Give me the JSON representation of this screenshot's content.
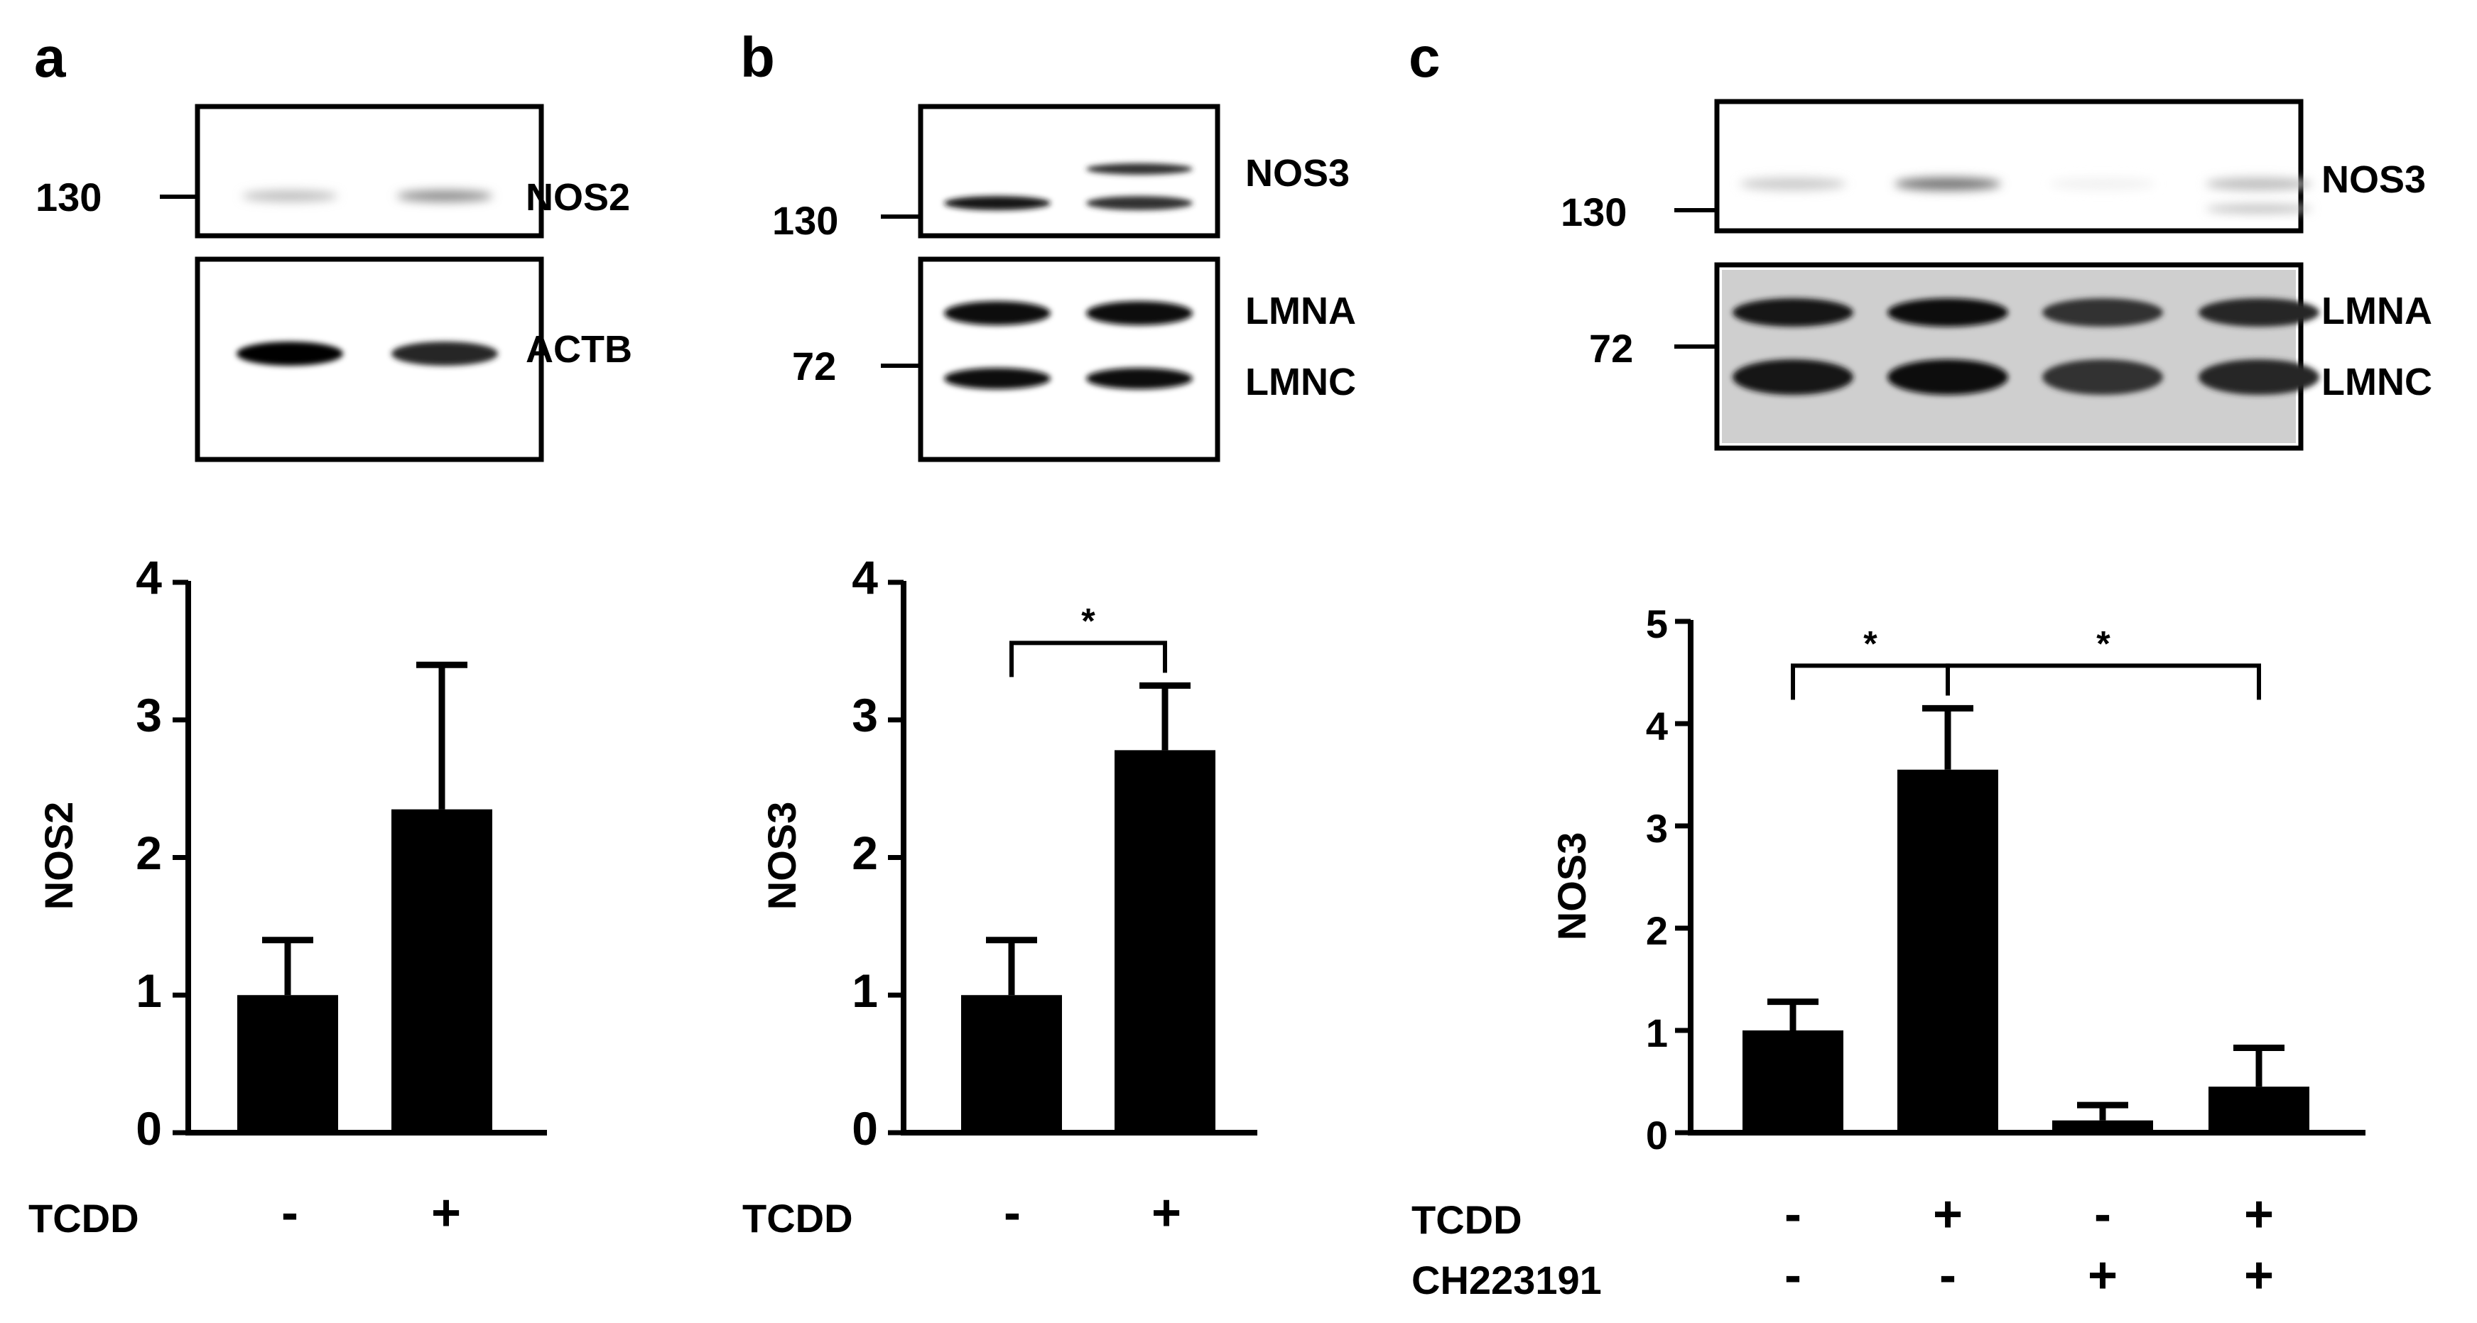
{
  "panels": [
    {
      "letter": "a",
      "blots": [
        {
          "bands": [
            "NOS2"
          ],
          "markers": [
            "130"
          ],
          "intensities": [
            0.25,
            0.45
          ]
        },
        {
          "bands": [
            "ACTB"
          ],
          "markers": [],
          "intensities": [
            1.0,
            0.85
          ]
        }
      ],
      "chart_data": {
        "type": "bar",
        "ylabel": "NOS2",
        "ylim": [
          0,
          4
        ],
        "yticks": [
          "0",
          "1",
          "2",
          "3",
          "4"
        ],
        "values": [
          1.0,
          2.35
        ],
        "errors": [
          0.4,
          1.05
        ],
        "conditions": [
          {
            "name": "TCDD",
            "signs": [
              "-",
              "+"
            ]
          }
        ],
        "significance": []
      }
    },
    {
      "letter": "b",
      "blots": [
        {
          "bands": [
            "NOS3"
          ],
          "markers": [
            "130"
          ],
          "intensities": [
            0.9,
            0.8
          ]
        },
        {
          "bands": [
            "LMNA",
            "LMNC"
          ],
          "markers": [
            "72"
          ],
          "intensities": [
            0.95,
            0.95
          ]
        }
      ],
      "chart_data": {
        "type": "bar",
        "ylabel": "NOS3",
        "ylim": [
          0,
          4
        ],
        "yticks": [
          "0",
          "1",
          "2",
          "3",
          "4"
        ],
        "values": [
          1.0,
          2.78
        ],
        "errors": [
          0.4,
          0.47
        ],
        "conditions": [
          {
            "name": "TCDD",
            "signs": [
              "-",
              "+"
            ]
          }
        ],
        "significance": [
          {
            "from": 0,
            "to": 1,
            "label": "*"
          }
        ]
      }
    },
    {
      "letter": "c",
      "blots": [
        {
          "bands": [
            "NOS3"
          ],
          "markers": [
            "130"
          ],
          "intensities": [
            0.2,
            0.55,
            0.05,
            0.25
          ]
        },
        {
          "bands": [
            "LMNA",
            "LMNC"
          ],
          "markers": [
            "72"
          ],
          "intensities": [
            0.9,
            0.95,
            0.8,
            0.85
          ]
        }
      ],
      "chart_data": {
        "type": "bar",
        "ylabel": "NOS3",
        "ylim": [
          0,
          5
        ],
        "yticks": [
          "0",
          "1",
          "2",
          "3",
          "4",
          "5"
        ],
        "values": [
          1.0,
          3.55,
          0.12,
          0.45
        ],
        "errors": [
          0.28,
          0.6,
          0.15,
          0.38
        ],
        "conditions": [
          {
            "name": "TCDD",
            "signs": [
              "-",
              "+",
              "-",
              "+"
            ]
          },
          {
            "name": "CH223191",
            "signs": [
              "-",
              "-",
              "+",
              "+"
            ]
          }
        ],
        "significance": [
          {
            "from": 0,
            "to": 1,
            "label": "*"
          },
          {
            "from": 1,
            "to": 3,
            "label": "*"
          }
        ]
      }
    }
  ]
}
